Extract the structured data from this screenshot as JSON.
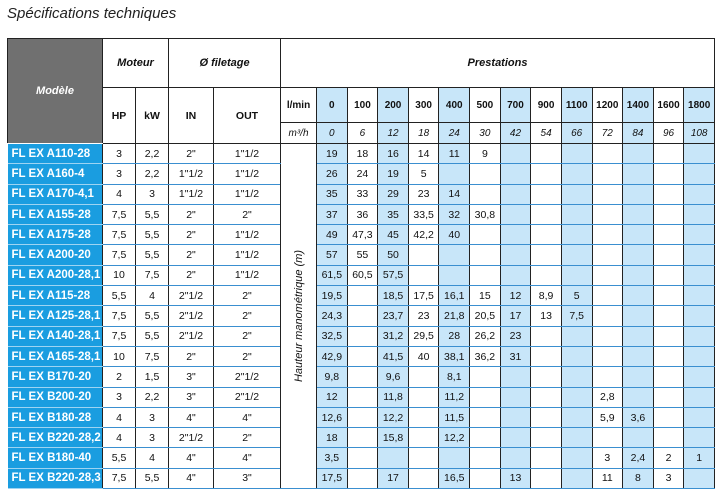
{
  "title": "Spécifications techniques",
  "headers": {
    "model": "Modèle",
    "motor": "Moteur",
    "thread": "Ø filetage",
    "performance": "Prestations",
    "hp": "HP",
    "kw": "kW",
    "in": "IN",
    "out": "OUT",
    "lmin": "l/min",
    "m3h": "m³/h",
    "vertical_label": "Hauteur manométrique (m)"
  },
  "flow_lmin": [
    "0",
    "100",
    "200",
    "300",
    "400",
    "500",
    "700",
    "900",
    "1100",
    "1200",
    "1400",
    "1600",
    "1800"
  ],
  "flow_m3h": [
    "0",
    "6",
    "12",
    "18",
    "24",
    "30",
    "42",
    "54",
    "66",
    "72",
    "84",
    "96",
    "108"
  ],
  "shaded_color": "#c8e6f9",
  "model_color": "#1a9de0",
  "rows": [
    {
      "model": "FL EX A110-28",
      "hp": "3",
      "kw": "2,2",
      "in": "2\"",
      "out": "1\"1/2",
      "v": [
        "19",
        "18",
        "16",
        "14",
        "11",
        "9",
        "",
        "",
        "",
        "",
        "",
        "",
        ""
      ]
    },
    {
      "model": "FL EX A160-4",
      "hp": "3",
      "kw": "2,2",
      "in": "1\"1/2",
      "out": "1\"1/2",
      "v": [
        "26",
        "24",
        "19",
        "5",
        "",
        "",
        "",
        "",
        "",
        "",
        "",
        "",
        ""
      ]
    },
    {
      "model": "FL EX A170-4,1",
      "hp": "4",
      "kw": "3",
      "in": "1\"1/2",
      "out": "1\"1/2",
      "v": [
        "35",
        "33",
        "29",
        "23",
        "14",
        "",
        "",
        "",
        "",
        "",
        "",
        "",
        ""
      ]
    },
    {
      "model": "FL EX A155-28",
      "hp": "7,5",
      "kw": "5,5",
      "in": "2\"",
      "out": "2\"",
      "v": [
        "37",
        "36",
        "35",
        "33,5",
        "32",
        "30,8",
        "",
        "",
        "",
        "",
        "",
        "",
        ""
      ]
    },
    {
      "model": "FL EX A175-28",
      "hp": "7,5",
      "kw": "5,5",
      "in": "2\"",
      "out": "1\"1/2",
      "v": [
        "49",
        "47,3",
        "45",
        "42,2",
        "40",
        "",
        "",
        "",
        "",
        "",
        "",
        "",
        ""
      ]
    },
    {
      "model": "FL EX A200-20",
      "hp": "7,5",
      "kw": "5,5",
      "in": "2\"",
      "out": "1\"1/2",
      "v": [
        "57",
        "55",
        "50",
        "",
        "",
        "",
        "",
        "",
        "",
        "",
        "",
        "",
        ""
      ]
    },
    {
      "model": "FL EX A200-28,1",
      "hp": "10",
      "kw": "7,5",
      "in": "2\"",
      "out": "1\"1/2",
      "v": [
        "61,5",
        "60,5",
        "57,5",
        "",
        "",
        "",
        "",
        "",
        "",
        "",
        "",
        "",
        ""
      ]
    },
    {
      "model": "FL EX A115-28",
      "hp": "5,5",
      "kw": "4",
      "in": "2\"1/2",
      "out": "2\"",
      "v": [
        "19,5",
        "",
        "18,5",
        "17,5",
        "16,1",
        "15",
        "12",
        "8,9",
        "5",
        "",
        "",
        "",
        ""
      ]
    },
    {
      "model": "FL EX A125-28,1",
      "hp": "7,5",
      "kw": "5,5",
      "in": "2\"1/2",
      "out": "2\"",
      "v": [
        "24,3",
        "",
        "23,7",
        "23",
        "21,8",
        "20,5",
        "17",
        "13",
        "7,5",
        "",
        "",
        "",
        ""
      ]
    },
    {
      "model": "FL EX A140-28,1",
      "hp": "7,5",
      "kw": "5,5",
      "in": "2\"1/2",
      "out": "2\"",
      "v": [
        "32,5",
        "",
        "31,2",
        "29,5",
        "28",
        "26,2",
        "23",
        "",
        "",
        "",
        "",
        "",
        ""
      ]
    },
    {
      "model": "FL EX A165-28,1",
      "hp": "10",
      "kw": "7,5",
      "in": "2\"",
      "out": "2\"",
      "v": [
        "42,9",
        "",
        "41,5",
        "40",
        "38,1",
        "36,2",
        "31",
        "",
        "",
        "",
        "",
        "",
        ""
      ]
    },
    {
      "model": "FL EX B170-20",
      "hp": "2",
      "kw": "1,5",
      "in": "3\"",
      "out": "2\"1/2",
      "v": [
        "9,8",
        "",
        "9,6",
        "",
        "8,1",
        "",
        "",
        "",
        "",
        "",
        "",
        "",
        ""
      ]
    },
    {
      "model": "FL EX B200-20",
      "hp": "3",
      "kw": "2,2",
      "in": "3\"",
      "out": "2\"1/2",
      "v": [
        "12",
        "",
        "11,8",
        "",
        "11,2",
        "",
        "",
        "",
        "",
        "2,8",
        "",
        "",
        ""
      ]
    },
    {
      "model": "FL EX B180-28",
      "hp": "4",
      "kw": "3",
      "in": "4\"",
      "out": "4\"",
      "v": [
        "12,6",
        "",
        "12,2",
        "",
        "11,5",
        "",
        "",
        "",
        "",
        "5,9",
        "3,6",
        "",
        ""
      ]
    },
    {
      "model": "FL EX B220-28,2",
      "hp": "4",
      "kw": "3",
      "in": "2\"1/2",
      "out": "2\"",
      "v": [
        "18",
        "",
        "15,8",
        "",
        "12,2",
        "",
        "",
        "",
        "",
        "",
        "",
        "",
        ""
      ]
    },
    {
      "model": "FL EX B180-40",
      "hp": "5,5",
      "kw": "4",
      "in": "4\"",
      "out": "4\"",
      "v": [
        "3,5",
        "",
        "",
        "",
        "",
        "",
        "",
        "",
        "",
        "3",
        "2,4",
        "2",
        "1"
      ]
    },
    {
      "model": "FL EX B220-28,3",
      "hp": "7,5",
      "kw": "5,5",
      "in": "4\"",
      "out": "3\"",
      "v": [
        "17,5",
        "",
        "17",
        "",
        "16,5",
        "",
        "13",
        "",
        "",
        "11",
        "8",
        "3",
        ""
      ]
    }
  ]
}
